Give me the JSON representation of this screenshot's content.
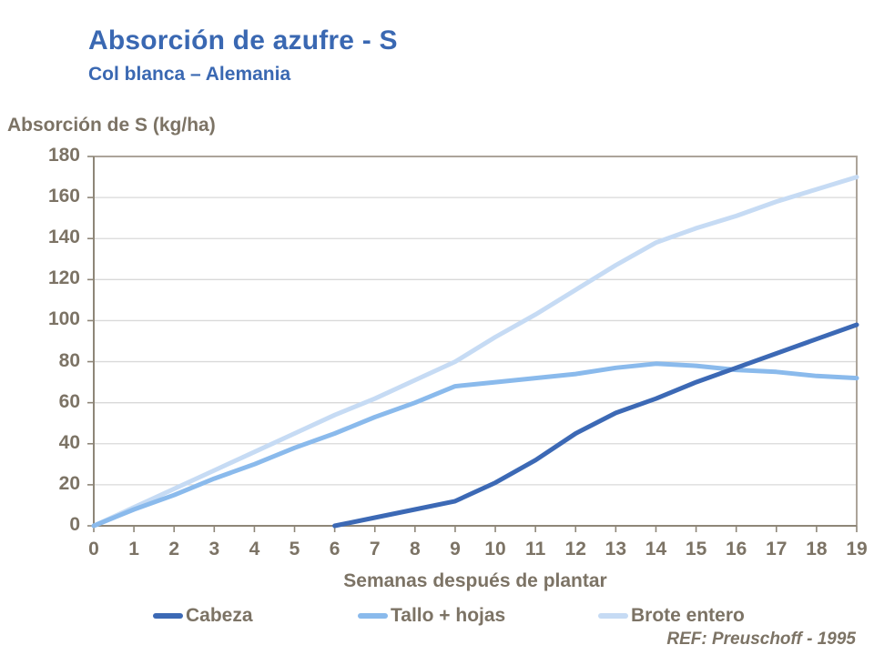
{
  "title": "Absorción de azufre - S",
  "subtitle": "Col blanca – Alemania",
  "y_axis_title": "Absorción de S (kg/ha)",
  "x_axis_title": "Semanas después de plantar",
  "reference": "REF: Preuschoff - 1995",
  "colors": {
    "title_blue": "#3a68b2",
    "label_text": "#7c7365",
    "grid": "#d9d9d9",
    "axis": "#8e8678",
    "frame": "#aca49a",
    "cabeza": "#3c69b5",
    "tallo_hojas": "#8abaec",
    "brote_entero": "#c6dbf4"
  },
  "chart_data": {
    "type": "line",
    "title": "Absorción de azufre - S",
    "subtitle": "Col blanca – Alemania",
    "xlabel": "Semanas después de plantar",
    "ylabel": "Absorción de S (kg/ha)",
    "xlim": [
      0,
      19
    ],
    "ylim": [
      0,
      180
    ],
    "x_ticks": [
      0,
      1,
      2,
      3,
      4,
      5,
      6,
      7,
      8,
      9,
      10,
      11,
      12,
      13,
      14,
      15,
      16,
      17,
      18,
      19
    ],
    "y_ticks": [
      0,
      20,
      40,
      60,
      80,
      100,
      120,
      140,
      160,
      180
    ],
    "grid": "horizontal",
    "legend_position": "bottom",
    "series": [
      {
        "name": "Brote entero",
        "color": "#c6dbf4",
        "x": [
          0,
          1,
          2,
          3,
          4,
          5,
          6,
          7,
          8,
          9,
          10,
          11,
          12,
          13,
          14,
          15,
          16,
          17,
          18,
          19
        ],
        "values": [
          0,
          9,
          18,
          27,
          36,
          45,
          54,
          62,
          71,
          80,
          92,
          103,
          115,
          127,
          138,
          145,
          151,
          158,
          164,
          170
        ]
      },
      {
        "name": "Tallo + hojas",
        "color": "#8abaec",
        "x": [
          0,
          1,
          2,
          3,
          4,
          5,
          6,
          7,
          8,
          9,
          10,
          11,
          12,
          13,
          14,
          15,
          16,
          17,
          18,
          19
        ],
        "values": [
          0,
          8,
          15,
          23,
          30,
          38,
          45,
          53,
          60,
          68,
          70,
          72,
          74,
          77,
          79,
          78,
          76,
          75,
          73,
          72
        ]
      },
      {
        "name": "Cabeza",
        "color": "#3c69b5",
        "x": [
          6,
          7,
          8,
          9,
          10,
          11,
          12,
          13,
          14,
          15,
          16,
          17,
          18,
          19
        ],
        "values": [
          0,
          4,
          8,
          12,
          21,
          32,
          45,
          55,
          62,
          70,
          77,
          84,
          91,
          98
        ]
      }
    ],
    "legend_order": [
      "Cabeza",
      "Tallo + hojas",
      "Brote entero"
    ]
  }
}
